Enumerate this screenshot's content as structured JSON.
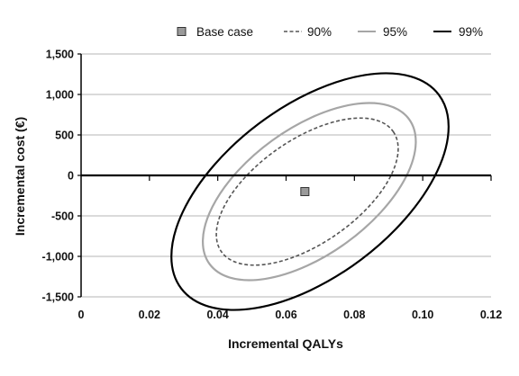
{
  "chart_data": {
    "type": "scatter",
    "title": "",
    "xlabel": "Incremental QALYs",
    "ylabel": "Incremental cost (€)",
    "xlim": [
      0,
      0.12
    ],
    "ylim": [
      -1500,
      1500
    ],
    "x_ticks": [
      0,
      0.02,
      0.04,
      0.06,
      0.08,
      0.1,
      0.12
    ],
    "x_tick_labels": [
      "0",
      "0.02",
      "0.04",
      "0.06",
      "0.08",
      "0.10",
      "0.12"
    ],
    "y_ticks": [
      1500,
      1000,
      500,
      0,
      -500,
      -1000,
      -1500
    ],
    "y_tick_labels": [
      "1,500",
      "1,000",
      "500",
      "0",
      "-500",
      "-1,000",
      "-1,500"
    ],
    "grid": "horizontal",
    "legend_placement": "top",
    "base_case": {
      "name": "Base case",
      "x": 0.0655,
      "y": -200,
      "color": "#9a9a9a"
    },
    "ellipses": [
      {
        "name": "90%",
        "color": "#555555",
        "style": "dashed",
        "center": [
          0.0662,
          -200
        ],
        "semi_axes": [
          0.0307,
          640
        ],
        "rotation_deg": -35
      },
      {
        "name": "95%",
        "color": "#a6a6a6",
        "style": "solid",
        "center": [
          0.0668,
          -200
        ],
        "semi_axes": [
          0.0361,
          780
        ],
        "rotation_deg": -36
      },
      {
        "name": "99%",
        "color": "#000000",
        "style": "solid",
        "center": [
          0.067,
          -200
        ],
        "semi_axes": [
          0.0472,
          1050
        ],
        "rotation_deg": -37
      }
    ]
  }
}
